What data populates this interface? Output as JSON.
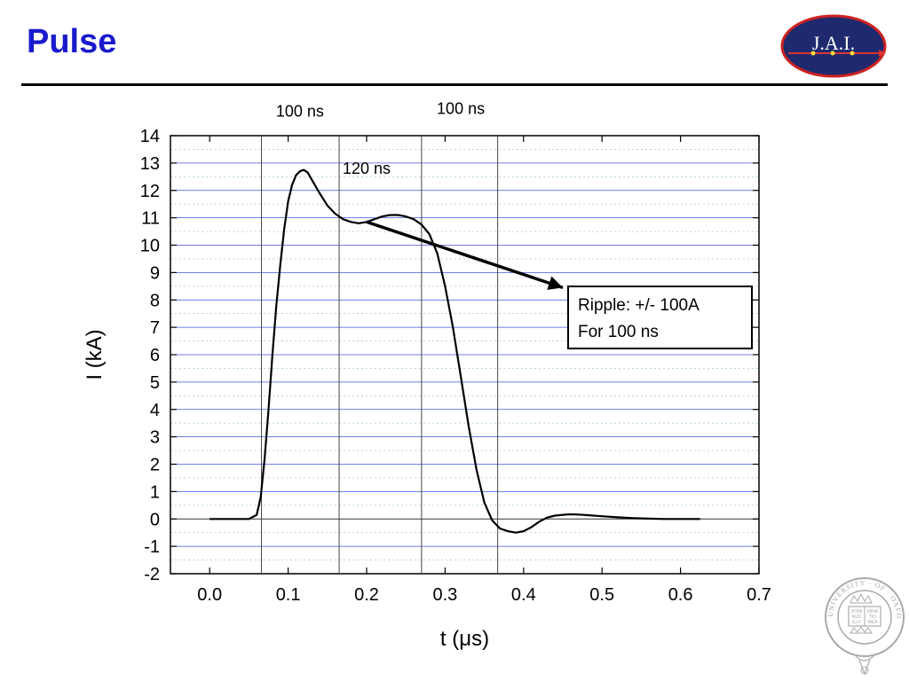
{
  "slide": {
    "title": "Pulse",
    "logo_text": "J.A.I.",
    "seal_text": "UNIVERSITY · OF · OXFORD",
    "seal_book": [
      "DOMI",
      "NUS",
      "ILLV",
      "MINA",
      "TIO",
      "MEA"
    ]
  },
  "colors": {
    "title": "#1a1acc",
    "logo_fill": "#1f2a6e",
    "logo_border": "#cc2222",
    "grid_major": "#4455dd",
    "grid_minor": "#88cc88",
    "curve": "#000000",
    "seal": "#aaaaaa"
  },
  "icons": {
    "logo": "jai-logo-icon",
    "seal": "oxford-university-seal-icon"
  },
  "chart_data": {
    "type": "line",
    "title": "",
    "xlabel": "t (μs)",
    "ylabel": "I (kA)",
    "xlim": [
      -0.05,
      0.7
    ],
    "ylim": [
      -2,
      14
    ],
    "xticks": [
      "0.0",
      "0.1",
      "0.2",
      "0.3",
      "0.4",
      "0.5",
      "0.6",
      "0.7"
    ],
    "xtick_values": [
      0.0,
      0.1,
      0.2,
      0.3,
      0.4,
      0.5,
      0.6,
      0.7
    ],
    "yticks": [
      "-2",
      "-1",
      "0",
      "1",
      "2",
      "3",
      "4",
      "5",
      "6",
      "7",
      "8",
      "9",
      "10",
      "11",
      "12",
      "13",
      "14"
    ],
    "ytick_values": [
      -2,
      -1,
      0,
      1,
      2,
      3,
      4,
      5,
      6,
      7,
      8,
      9,
      10,
      11,
      12,
      13,
      14
    ],
    "grid": true,
    "series": [
      {
        "x": [
          0.0,
          0.05,
          0.06,
          0.065,
          0.07,
          0.075,
          0.08,
          0.085,
          0.09,
          0.095,
          0.1,
          0.105,
          0.11,
          0.115,
          0.12,
          0.125,
          0.13,
          0.14,
          0.15,
          0.16,
          0.17,
          0.18,
          0.19,
          0.2,
          0.21,
          0.22,
          0.23,
          0.24,
          0.25,
          0.26,
          0.27,
          0.28,
          0.29,
          0.3,
          0.31,
          0.32,
          0.33,
          0.34,
          0.35,
          0.36,
          0.37,
          0.38,
          0.39,
          0.4,
          0.41,
          0.42,
          0.43,
          0.44,
          0.45,
          0.46,
          0.47,
          0.48,
          0.5,
          0.52,
          0.54,
          0.56,
          0.58,
          0.6,
          0.625
        ],
        "y": [
          0.0,
          0.0,
          0.15,
          0.8,
          2.2,
          4.0,
          6.0,
          7.8,
          9.3,
          10.6,
          11.6,
          12.2,
          12.55,
          12.7,
          12.75,
          12.65,
          12.4,
          11.9,
          11.45,
          11.15,
          10.95,
          10.85,
          10.8,
          10.85,
          10.95,
          11.05,
          11.1,
          11.1,
          11.05,
          10.95,
          10.75,
          10.4,
          9.7,
          8.5,
          7.0,
          5.2,
          3.4,
          1.8,
          0.6,
          -0.05,
          -0.35,
          -0.45,
          -0.5,
          -0.45,
          -0.3,
          -0.1,
          0.05,
          0.12,
          0.15,
          0.17,
          0.16,
          0.14,
          0.1,
          0.06,
          0.03,
          0.01,
          0.0,
          0.0,
          0.0
        ]
      }
    ],
    "markers": [
      0.066,
      0.165,
      0.27,
      0.367
    ],
    "annotations": [
      {
        "text": "100 ns",
        "x": 0.115,
        "y": 14.7
      },
      {
        "text": "100 ns",
        "x": 0.32,
        "y": 14.8
      },
      {
        "text": "120 ns",
        "x": 0.2,
        "y": 12.6
      }
    ],
    "ripple_box": [
      "Ripple: +/- 100A",
      "For 100 ns"
    ],
    "arrow": {
      "from": [
        0.2,
        10.85
      ],
      "to": [
        0.45,
        8.45
      ]
    }
  }
}
